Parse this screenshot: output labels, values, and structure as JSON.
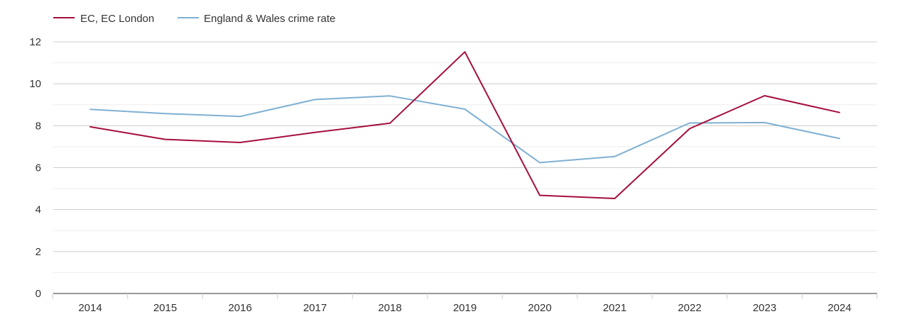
{
  "chart_data": {
    "type": "line",
    "title": "",
    "xlabel": "",
    "ylabel": "",
    "x": [
      "2014",
      "2015",
      "2016",
      "2017",
      "2018",
      "2019",
      "2020",
      "2021",
      "2022",
      "2023",
      "2024"
    ],
    "ylim": [
      0,
      12
    ],
    "yticks": [
      "0",
      "2",
      "4",
      "6",
      "8",
      "10",
      "12"
    ],
    "grid": true,
    "legend_position": "top-left",
    "series": [
      {
        "name": "EC, EC London",
        "color": "#a50f3c",
        "values": [
          7.95,
          7.35,
          7.2,
          7.68,
          8.12,
          11.52,
          4.68,
          4.53,
          7.86,
          9.43,
          8.63
        ]
      },
      {
        "name": "England & Wales crime rate",
        "color": "#7fb0d2",
        "values": [
          8.78,
          8.58,
          8.44,
          9.25,
          9.42,
          8.79,
          6.24,
          6.53,
          8.13,
          8.15,
          7.39
        ]
      }
    ]
  }
}
